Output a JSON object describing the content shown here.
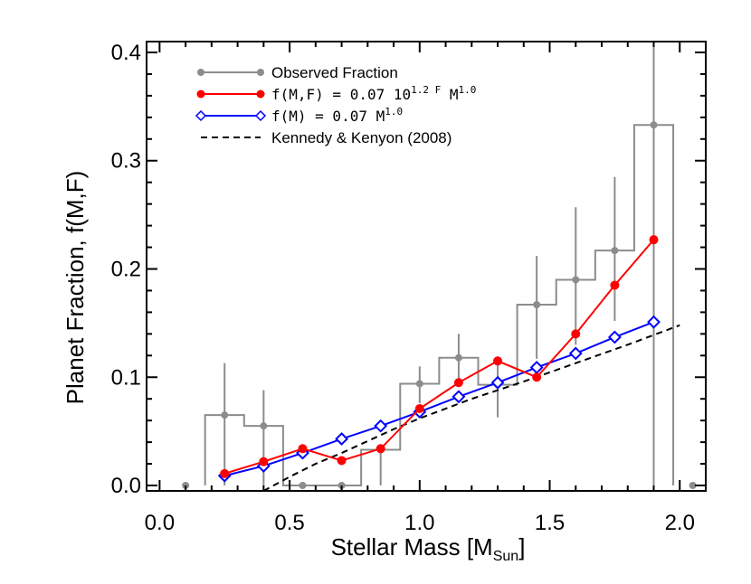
{
  "chart_data": {
    "type": "line",
    "xlabel": "Stellar Mass [M",
    "xlabel_sub": "Sun",
    "xlabel_end": "]",
    "ylabel": "Planet Fraction, f(M,F)",
    "xlim": [
      -0.05,
      2.1
    ],
    "ylim": [
      -0.005,
      0.41
    ],
    "x_ticks": [
      0.0,
      0.5,
      1.0,
      1.5,
      2.0
    ],
    "x_tick_labels": [
      "0.0",
      "0.5",
      "1.0",
      "1.5",
      "2.0"
    ],
    "y_ticks": [
      0.0,
      0.1,
      0.2,
      0.3,
      0.4
    ],
    "y_tick_labels": [
      "0.0",
      "0.1",
      "0.2",
      "0.3",
      "0.4"
    ],
    "legend_position": "top-left",
    "series": [
      {
        "name": "Observed Fraction",
        "style": "histogram-with-errorbars",
        "color": "#8c8c8c",
        "x": [
          0.1,
          0.25,
          0.4,
          0.55,
          0.7,
          0.85,
          1.0,
          1.15,
          1.3,
          1.45,
          1.6,
          1.75,
          1.9,
          2.05
        ],
        "y": [
          0.0,
          0.065,
          0.055,
          0.0,
          0.0,
          0.033,
          0.094,
          0.118,
          0.093,
          0.167,
          0.19,
          0.217,
          0.333,
          0.0
        ],
        "err_low": [
          0.0,
          0.065,
          0.055,
          0.0,
          0.0,
          0.033,
          0.018,
          0.02,
          0.03,
          0.05,
          0.06,
          0.065,
          0.333,
          0.0
        ],
        "err_high": [
          0.0,
          0.048,
          0.033,
          0.0,
          0.0,
          0.0,
          0.016,
          0.022,
          0.025,
          0.045,
          0.067,
          0.068,
          0.09,
          0.0
        ]
      },
      {
        "name": "f(M,F) = 0.07 10",
        "name_sup1": "1.2 F",
        "name_mid": "M",
        "name_sup2": "1.0",
        "style": "line-filled-circles",
        "color": "#ff0000",
        "x": [
          0.25,
          0.4,
          0.55,
          0.7,
          0.85,
          1.0,
          1.15,
          1.3,
          1.45,
          1.6,
          1.75,
          1.9
        ],
        "y": [
          0.011,
          0.022,
          0.034,
          0.023,
          0.034,
          0.071,
          0.095,
          0.115,
          0.1,
          0.14,
          0.185,
          0.227
        ]
      },
      {
        "name": "f(M) = 0.07 M",
        "name_sup": "1.0",
        "style": "line-open-diamonds",
        "color": "#0000ff",
        "x": [
          0.25,
          0.4,
          0.55,
          0.7,
          0.85,
          1.0,
          1.15,
          1.3,
          1.45,
          1.6,
          1.75,
          1.9
        ],
        "y": [
          0.009,
          0.018,
          0.03,
          0.043,
          0.055,
          0.068,
          0.082,
          0.095,
          0.109,
          0.122,
          0.137,
          0.151
        ]
      },
      {
        "name": "Kennedy & Kenyon (2008)",
        "style": "dashed",
        "color": "#000000",
        "x": [
          0.4,
          0.5,
          0.6,
          0.7,
          0.8,
          0.9,
          1.0,
          1.2,
          1.4,
          1.6,
          1.8,
          2.0
        ],
        "y": [
          -0.005,
          0.008,
          0.02,
          0.03,
          0.041,
          0.052,
          0.062,
          0.08,
          0.096,
          0.113,
          0.13,
          0.148
        ]
      }
    ]
  }
}
